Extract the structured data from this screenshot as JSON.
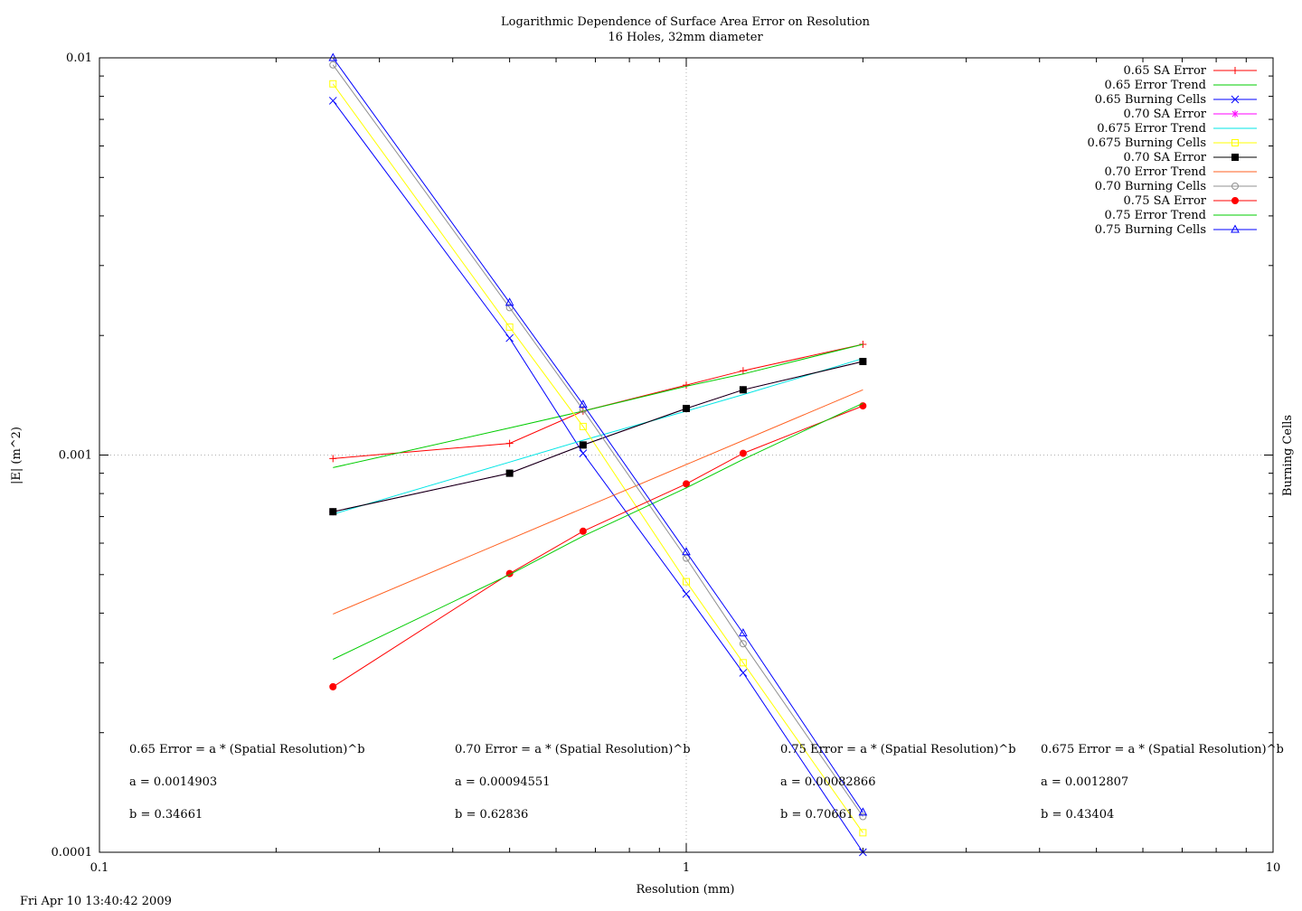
{
  "chart_data": {
    "type": "line",
    "title": "Logarithmic Dependence of Surface Area Error on Resolution",
    "subtitle": "16 Holes, 32mm diameter",
    "xlabel": "Resolution (mm)",
    "ylabel": "|E| (m^2)",
    "y2label": "Burning Cells",
    "xscale": "log",
    "yscale": "log",
    "xlim": [
      0.1,
      10
    ],
    "ylim": [
      0.0001,
      0.01
    ],
    "xticks": [
      "0.1",
      "1",
      "10"
    ],
    "yticks": [
      "0.0001",
      "0.001",
      "0.01"
    ],
    "grid": "major only, dotted",
    "legend_position": "top-right",
    "series": [
      {
        "name": "0.65 SA Error",
        "color": "#ff0000",
        "marker": "plus",
        "x": [
          0.25,
          0.5,
          0.667,
          1.0,
          1.25,
          2.0
        ],
        "y": [
          0.00098,
          0.00107,
          0.00129,
          0.0015,
          0.00163,
          0.0019
        ]
      },
      {
        "name": "0.65 Error Trend",
        "color": "#00cc00",
        "marker": "none",
        "x": [
          0.25,
          0.5,
          0.667,
          1.0,
          1.25,
          2.0
        ],
        "y": [
          0.00093,
          0.00117,
          0.00129,
          0.00149,
          0.0016,
          0.0019
        ]
      },
      {
        "name": "0.65 Burning Cells",
        "color": "#0000ff",
        "marker": "x",
        "x": [
          0.25,
          0.5,
          0.667,
          1.0,
          1.25,
          2.0
        ],
        "y": [
          0.0078,
          0.00197,
          0.00101,
          0.000447,
          0.000283,
          0.0001
        ]
      },
      {
        "name": "0.70 SA Error",
        "color": "#ff00ff",
        "marker": "star",
        "x": [
          0.25,
          0.5,
          0.667,
          1.0,
          1.25,
          2.0
        ],
        "y": [
          0.00072,
          0.0009,
          0.00106,
          0.00131,
          0.00146,
          0.00172
        ]
      },
      {
        "name": "0.675 Error Trend",
        "color": "#00e5e5",
        "marker": "none",
        "x": [
          0.25,
          0.5,
          0.667,
          1.0,
          1.25,
          2.0
        ],
        "y": [
          0.00071,
          0.00096,
          0.00109,
          0.00129,
          0.00142,
          0.00175
        ]
      },
      {
        "name": "0.675 Burning Cells",
        "color": "#ffff00",
        "marker": "square-open",
        "x": [
          0.25,
          0.5,
          0.667,
          1.0,
          1.25,
          2.0
        ],
        "y": [
          0.0086,
          0.0021,
          0.00118,
          0.00048,
          0.0003,
          0.000112
        ]
      },
      {
        "name": "0.70 SA Error",
        "color": "#000000",
        "marker": "square-filled",
        "x": [
          0.25,
          0.5,
          0.667,
          1.0,
          1.25,
          2.0
        ],
        "y": [
          0.00072,
          0.0009,
          0.00106,
          0.00131,
          0.00146,
          0.00172
        ]
      },
      {
        "name": "0.70 Error Trend",
        "color": "#ff6020",
        "marker": "none",
        "x": [
          0.25,
          2.0
        ],
        "y": [
          0.000398,
          0.00146
        ]
      },
      {
        "name": "0.70 Burning Cells",
        "color": "#909090",
        "marker": "circle-open",
        "x": [
          0.25,
          0.5,
          0.667,
          1.0,
          1.25,
          2.0
        ],
        "y": [
          0.0096,
          0.00235,
          0.0013,
          0.00055,
          0.000335,
          0.000123
        ]
      },
      {
        "name": "0.75 SA Error",
        "color": "#ff0000",
        "marker": "circle-filled",
        "x": [
          0.25,
          0.5,
          0.667,
          1.0,
          1.25,
          2.0
        ],
        "y": [
          0.000261,
          0.000503,
          0.000643,
          0.000846,
          0.00101,
          0.00133
        ]
      },
      {
        "name": "0.75 Error Trend",
        "color": "#00cc00",
        "marker": "none",
        "x": [
          0.25,
          0.5,
          0.667,
          1.0,
          1.25,
          2.0
        ],
        "y": [
          0.000306,
          0.0005,
          0.000625,
          0.000827,
          0.000975,
          0.00135
        ]
      },
      {
        "name": "0.75 Burning Cells",
        "color": "#0000ff",
        "marker": "triangle-open",
        "x": [
          0.25,
          0.5,
          0.667,
          1.0,
          1.25,
          2.0
        ],
        "y": [
          0.01,
          0.00242,
          0.00134,
          0.00057,
          0.000356,
          0.000126
        ]
      }
    ],
    "annotations": [
      {
        "line1": "0.65 Error = a * (Spatial Resolution)^b",
        "line2": "a = 0.0014903",
        "line3": "b = 0.34661"
      },
      {
        "line1": "0.70 Error = a * (Spatial Resolution)^b",
        "line2": "a = 0.00094551",
        "line3": "b = 0.62836"
      },
      {
        "line1": "0.75 Error = a * (Spatial Resolution)^b",
        "line2": "a = 0.00082866",
        "line3": "b = 0.70661"
      },
      {
        "line1": "0.675 Error = a * (Spatial Resolution)^b",
        "line2": "a = 0.0012807",
        "line3": "b = 0.43404"
      }
    ],
    "timestamp": "Fri Apr 10 13:40:42 2009"
  }
}
